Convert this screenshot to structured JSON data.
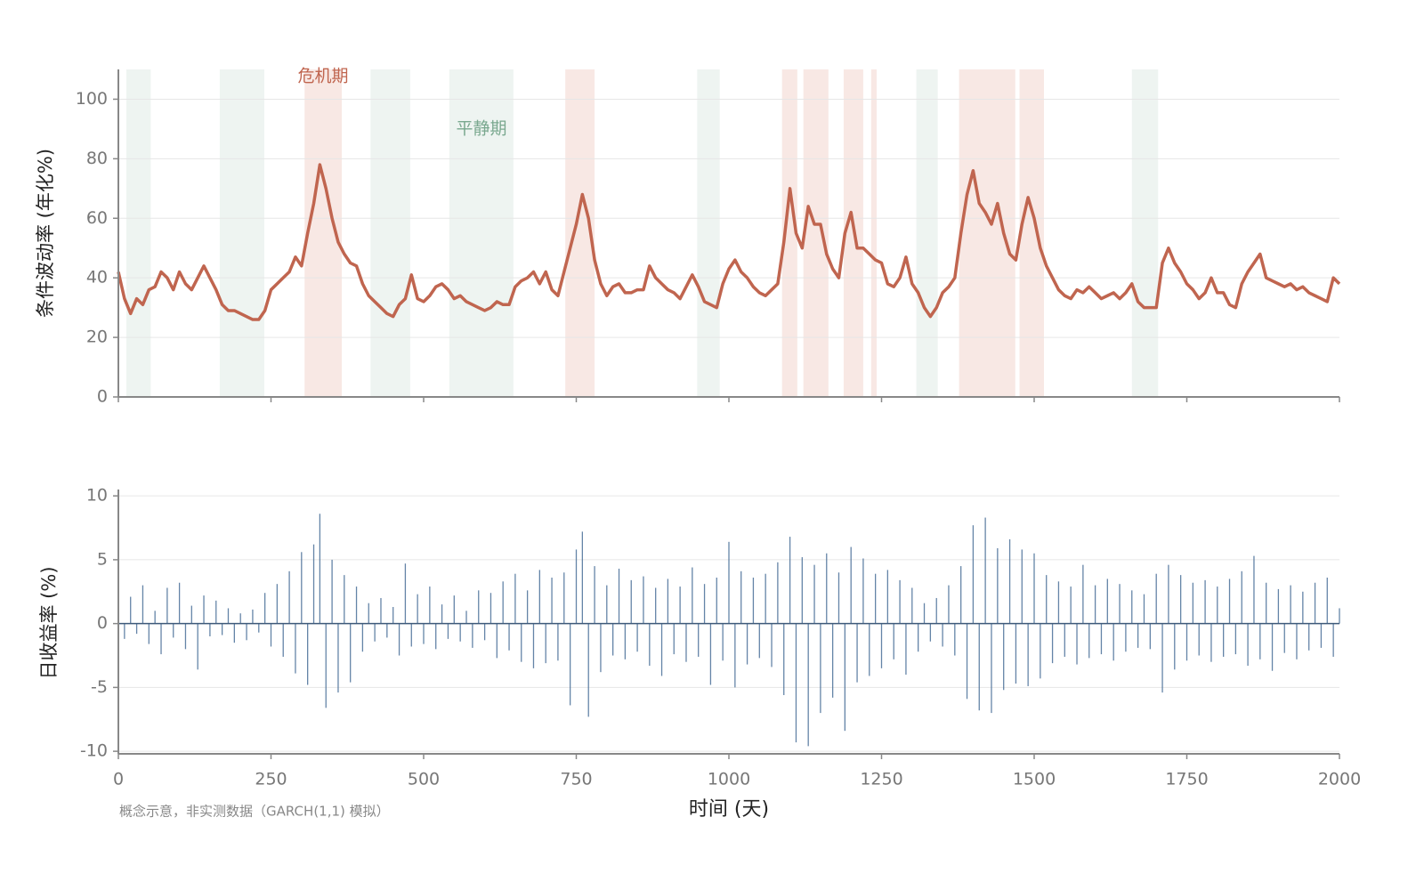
{
  "chart_data": [
    {
      "type": "line",
      "y_label": "条件波动率 (年化%)",
      "color": "#c0654f",
      "calm_color": "#eef4f1",
      "crisis_color": "#f8e8e4",
      "crisis_label": "危机期",
      "calm_label": "平静期",
      "calm_periods": [
        [
          13,
          53
        ],
        [
          166,
          239
        ],
        [
          413,
          478
        ],
        [
          542,
          647
        ],
        [
          948,
          985
        ],
        [
          1307,
          1342
        ],
        [
          1660,
          1703
        ]
      ],
      "crisis_periods": [
        [
          305,
          366
        ],
        [
          732,
          780
        ],
        [
          1087,
          1112
        ],
        [
          1122,
          1163
        ],
        [
          1188,
          1220
        ],
        [
          1233,
          1242
        ],
        [
          1377,
          1469
        ],
        [
          1476,
          1516
        ]
      ],
      "xlim": [
        0,
        2000
      ],
      "xticks": [
        0,
        250,
        500,
        750,
        1000,
        1250,
        1500,
        1750,
        2000
      ],
      "ylim": [
        0,
        110
      ],
      "yticks": [
        0,
        20,
        40,
        60,
        80,
        100
      ],
      "grid": true,
      "x": [
        0,
        10,
        20,
        30,
        40,
        50,
        60,
        70,
        80,
        90,
        100,
        110,
        120,
        130,
        140,
        150,
        160,
        170,
        180,
        190,
        200,
        210,
        220,
        230,
        240,
        250,
        260,
        270,
        280,
        290,
        300,
        310,
        320,
        330,
        340,
        350,
        360,
        370,
        380,
        390,
        400,
        410,
        420,
        430,
        440,
        450,
        460,
        470,
        480,
        490,
        500,
        510,
        520,
        530,
        540,
        550,
        560,
        570,
        580,
        590,
        600,
        610,
        620,
        630,
        640,
        650,
        660,
        670,
        680,
        690,
        700,
        710,
        720,
        730,
        740,
        750,
        760,
        770,
        780,
        790,
        800,
        810,
        820,
        830,
        840,
        850,
        860,
        870,
        880,
        890,
        900,
        910,
        920,
        930,
        940,
        950,
        960,
        970,
        980,
        990,
        1000,
        1010,
        1020,
        1030,
        1040,
        1050,
        1060,
        1070,
        1080,
        1090,
        1100,
        1110,
        1120,
        1130,
        1140,
        1150,
        1160,
        1170,
        1180,
        1190,
        1200,
        1210,
        1220,
        1230,
        1240,
        1250,
        1260,
        1270,
        1280,
        1290,
        1300,
        1310,
        1320,
        1330,
        1340,
        1350,
        1360,
        1370,
        1380,
        1390,
        1400,
        1410,
        1420,
        1430,
        1440,
        1450,
        1460,
        1470,
        1480,
        1490,
        1500,
        1510,
        1520,
        1530,
        1540,
        1550,
        1560,
        1570,
        1580,
        1590,
        1600,
        1610,
        1620,
        1630,
        1640,
        1650,
        1660,
        1670,
        1680,
        1690,
        1700,
        1710,
        1720,
        1730,
        1740,
        1750,
        1760,
        1770,
        1780,
        1790,
        1800,
        1810,
        1820,
        1830,
        1840,
        1850,
        1860,
        1870,
        1880,
        1890,
        1900,
        1910,
        1920,
        1930,
        1940,
        1950,
        1960,
        1970,
        1980,
        1990,
        2000
      ],
      "values": [
        42,
        33,
        28,
        33,
        31,
        36,
        37,
        42,
        40,
        36,
        42,
        38,
        36,
        40,
        44,
        40,
        36,
        31,
        29,
        29,
        28,
        27,
        26,
        26,
        29,
        36,
        38,
        40,
        42,
        47,
        44,
        55,
        65,
        78,
        70,
        60,
        52,
        48,
        45,
        44,
        38,
        34,
        32,
        30,
        28,
        27,
        31,
        33,
        41,
        33,
        32,
        34,
        37,
        38,
        36,
        33,
        34,
        32,
        31,
        30,
        29,
        30,
        32,
        31,
        31,
        37,
        39,
        40,
        42,
        38,
        42,
        36,
        34,
        42,
        50,
        58,
        68,
        60,
        46,
        38,
        34,
        37,
        38,
        35,
        35,
        36,
        36,
        44,
        40,
        38,
        36,
        35,
        33,
        37,
        41,
        37,
        32,
        31,
        30,
        38,
        43,
        46,
        42,
        40,
        37,
        35,
        34,
        36,
        38,
        52,
        70,
        55,
        50,
        64,
        58,
        58,
        48,
        43,
        40,
        55,
        62,
        50,
        50,
        48,
        46,
        45,
        38,
        37,
        40,
        47,
        38,
        35,
        30,
        27,
        30,
        35,
        37,
        40,
        55,
        68,
        76,
        65,
        62,
        58,
        65,
        55,
        48,
        46,
        58,
        67,
        60,
        50,
        44,
        40,
        36,
        34,
        33,
        36,
        35,
        37,
        35,
        33,
        34,
        35,
        33,
        35,
        38,
        32,
        30,
        30,
        30,
        45,
        50,
        45,
        42,
        38,
        36,
        33,
        35,
        40,
        35,
        35,
        31,
        30,
        38,
        42,
        45,
        48,
        40,
        39,
        38,
        37,
        38,
        36,
        37,
        35,
        34,
        33,
        32,
        40,
        38
      ]
    },
    {
      "type": "bar",
      "y_label": "日收益率 (%)",
      "x_label": "时间 (天)",
      "note": "概念示意，非实测数据（GARCH(1,1) 模拟）",
      "color": "#4a6f98",
      "xlim": [
        0,
        2000
      ],
      "xticks": [
        0,
        250,
        500,
        750,
        1000,
        1250,
        1500,
        1750,
        2000
      ],
      "ylim": [
        -10.2,
        10.5
      ],
      "yticks": [
        10,
        5,
        0,
        -5,
        -10
      ],
      "grid": true,
      "x": [
        0,
        10,
        20,
        30,
        40,
        50,
        60,
        70,
        80,
        90,
        100,
        110,
        120,
        130,
        140,
        150,
        160,
        170,
        180,
        190,
        200,
        210,
        220,
        230,
        240,
        250,
        260,
        270,
        280,
        290,
        300,
        310,
        320,
        330,
        340,
        350,
        360,
        370,
        380,
        390,
        400,
        410,
        420,
        430,
        440,
        450,
        460,
        470,
        480,
        490,
        500,
        510,
        520,
        530,
        540,
        550,
        560,
        570,
        580,
        590,
        600,
        610,
        620,
        630,
        640,
        650,
        660,
        670,
        680,
        690,
        700,
        710,
        720,
        730,
        740,
        750,
        760,
        770,
        780,
        790,
        800,
        810,
        820,
        830,
        840,
        850,
        860,
        870,
        880,
        890,
        900,
        910,
        920,
        930,
        940,
        950,
        960,
        970,
        980,
        990,
        1000,
        1010,
        1020,
        1030,
        1040,
        1050,
        1060,
        1070,
        1080,
        1090,
        1100,
        1110,
        1120,
        1130,
        1140,
        1150,
        1160,
        1170,
        1180,
        1190,
        1200,
        1210,
        1220,
        1230,
        1240,
        1250,
        1260,
        1270,
        1280,
        1290,
        1300,
        1310,
        1320,
        1330,
        1340,
        1350,
        1360,
        1370,
        1380,
        1390,
        1400,
        1410,
        1420,
        1430,
        1440,
        1450,
        1460,
        1470,
        1480,
        1490,
        1500,
        1510,
        1520,
        1530,
        1540,
        1550,
        1560,
        1570,
        1580,
        1590,
        1600,
        1610,
        1620,
        1630,
        1640,
        1650,
        1660,
        1670,
        1680,
        1690,
        1700,
        1710,
        1720,
        1730,
        1740,
        1750,
        1760,
        1770,
        1780,
        1790,
        1800,
        1810,
        1820,
        1830,
        1840,
        1850,
        1860,
        1870,
        1880,
        1890,
        1900,
        1910,
        1920,
        1930,
        1940,
        1950,
        1960,
        1970,
        1980,
        1990,
        2000
      ],
      "values": [
        1.5,
        -1.2,
        2.1,
        -0.8,
        3.0,
        -1.6,
        1.0,
        -2.4,
        2.8,
        -1.1,
        3.2,
        -2.0,
        1.4,
        -3.6,
        2.2,
        -1.0,
        1.8,
        -0.9,
        1.2,
        -1.5,
        0.8,
        -1.3,
        1.1,
        -0.7,
        2.4,
        -1.8,
        3.1,
        -2.6,
        4.1,
        -3.9,
        5.6,
        -4.8,
        6.2,
        8.6,
        -6.6,
        5.0,
        -5.4,
        3.8,
        -4.6,
        2.9,
        -2.2,
        1.6,
        -1.4,
        2.0,
        -1.1,
        1.3,
        -2.5,
        4.7,
        -1.8,
        2.3,
        -1.6,
        2.9,
        -2.0,
        1.5,
        -1.2,
        2.2,
        -1.4,
        1.0,
        -1.9,
        2.6,
        -1.3,
        2.4,
        -2.7,
        3.3,
        -2.1,
        3.9,
        -3.0,
        2.6,
        -3.5,
        4.2,
        -3.1,
        3.6,
        -2.9,
        4.0,
        -6.4,
        5.8,
        7.2,
        -7.3,
        4.5,
        -3.8,
        3.0,
        -2.5,
        4.3,
        -2.8,
        3.4,
        -2.2,
        3.7,
        -3.3,
        2.8,
        -4.1,
        3.5,
        -2.4,
        2.9,
        -3.0,
        4.4,
        -2.6,
        3.1,
        -4.8,
        3.6,
        -2.9,
        6.4,
        -5.0,
        4.1,
        -3.2,
        3.6,
        -2.7,
        3.9,
        -3.4,
        4.8,
        -5.6,
        6.8,
        -9.3,
        5.2,
        -9.6,
        4.6,
        -7.0,
        5.5,
        -5.8,
        4.0,
        -8.4,
        6.0,
        -4.6,
        5.1,
        -4.1,
        3.9,
        -3.5,
        4.2,
        -2.8,
        3.4,
        -4.0,
        2.8,
        -2.2,
        1.6,
        -1.4,
        2.0,
        -1.8,
        3.0,
        -2.5,
        4.5,
        -5.9,
        7.7,
        -6.8,
        8.3,
        -7.0,
        5.9,
        -5.2,
        6.6,
        -4.7,
        5.8,
        -4.9,
        5.5,
        -4.3,
        3.8,
        -3.1,
        3.3,
        -2.6,
        2.9,
        -3.2,
        4.6,
        -2.7,
        3.0,
        -2.4,
        3.5,
        -2.9,
        3.1,
        -2.2,
        2.6,
        -1.9,
        2.3,
        -2.0,
        3.9,
        -5.4,
        4.6,
        -3.6,
        3.8,
        -2.9,
        3.2,
        -2.5,
        3.4,
        -3.0,
        2.9,
        -2.6,
        3.5,
        -2.4,
        4.1,
        -3.3,
        5.3,
        -2.8,
        3.2,
        -3.7,
        2.7,
        -2.3,
        3.0,
        -2.8,
        2.5,
        -2.1,
        3.2,
        -1.9,
        3.6,
        -2.6,
        1.2
      ]
    }
  ]
}
